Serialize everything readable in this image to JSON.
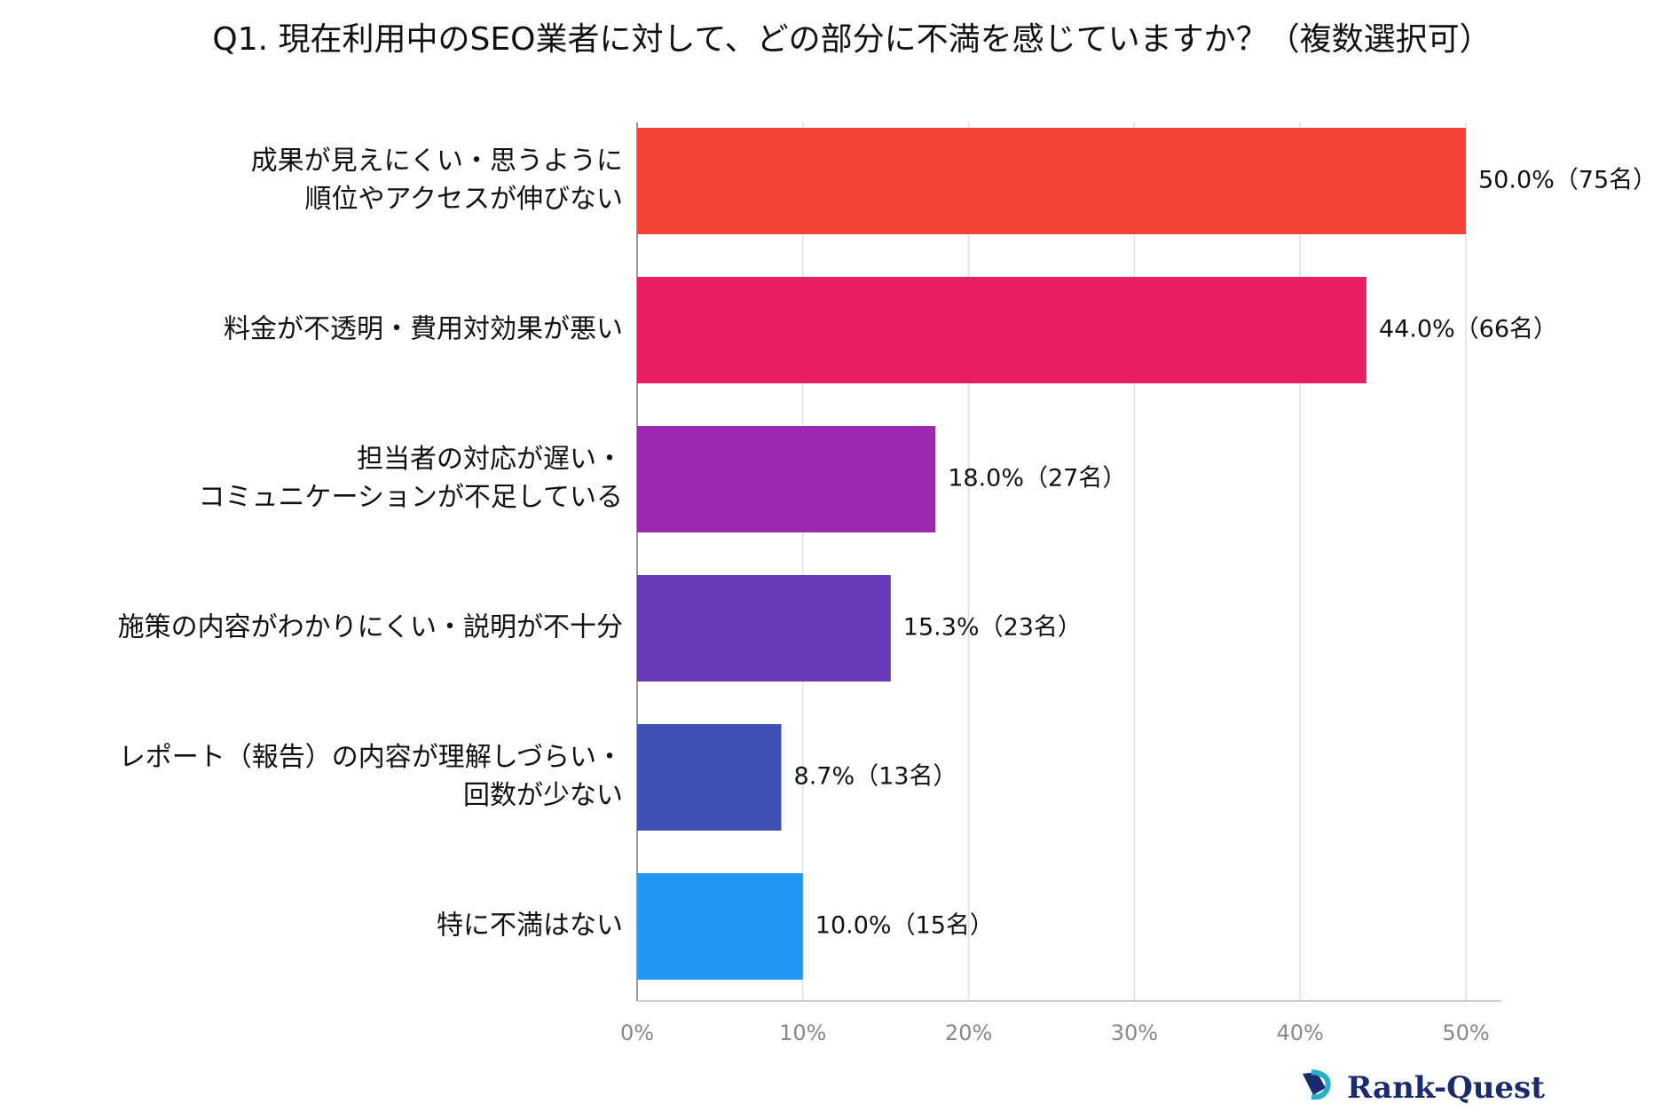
{
  "chart_data": {
    "type": "hbar",
    "title": "Q1. 現在利用中のSEO業者に対して、どの部分に不満を感じていますか？（複数選択可）",
    "categories": [
      [
        "成果が見えにくい・思うように",
        "順位やアクセスが伸びない"
      ],
      [
        "料金が不透明・費用対効果が悪い"
      ],
      [
        "担当者の対応が遅い・",
        "コミュニケーションが不足している"
      ],
      [
        "施策の内容がわかりにくい・説明が不十分"
      ],
      [
        "レポート（報告）の内容が理解しづらい・",
        "回数が少ない"
      ],
      [
        "特に不満はない"
      ]
    ],
    "values": [
      50.0,
      44.0,
      18.0,
      15.3,
      8.7,
      10.0
    ],
    "value_labels": [
      "50.0%（75名）",
      "44.0%（66名）",
      "18.0%（27名）",
      "15.3%（23名）",
      "8.7%（13名）",
      "10.0%（15名）"
    ],
    "colors": [
      "#f44336",
      "#e91e63",
      "#9c27b0",
      "#673ab7",
      "#3f51b5",
      "#2196f3"
    ],
    "xlim": [
      0,
      50
    ],
    "xticks": [
      {
        "value": 0,
        "label": "0%"
      },
      {
        "value": 10,
        "label": "10%"
      },
      {
        "value": 20,
        "label": "20%"
      },
      {
        "value": 30,
        "label": "30%"
      },
      {
        "value": 40,
        "label": "40%"
      },
      {
        "value": 50,
        "label": "50%"
      }
    ],
    "grid": true,
    "logo": "Rank-Quest"
  }
}
